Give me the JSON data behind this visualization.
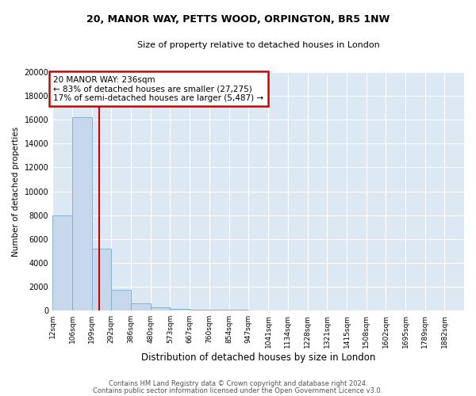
{
  "title1": "20, MANOR WAY, PETTS WOOD, ORPINGTON, BR5 1NW",
  "title2": "Size of property relative to detached houses in London",
  "xlabel": "Distribution of detached houses by size in London",
  "ylabel": "Number of detached properties",
  "footer1": "Contains HM Land Registry data © Crown copyright and database right 2024.",
  "footer2": "Contains public sector information licensed under the Open Government Licence v3.0.",
  "annotation_title": "20 MANOR WAY: 236sqm",
  "annotation_line1": "← 83% of detached houses are smaller (27,275)",
  "annotation_line2": "17% of semi-detached houses are larger (5,487) →",
  "property_size": 236,
  "bar_color": "#c8d8ec",
  "bar_edge_color": "#8ab0cc",
  "vline_color": "#cc0000",
  "annotation_box_color": "#cc0000",
  "background_color": "#dce9f5",
  "grid_color": "#ffffff",
  "xlim_min": 12,
  "xlim_max": 1975,
  "ylim_min": 0,
  "ylim_max": 20000,
  "bin_edges": [
    12,
    106,
    199,
    292,
    386,
    480,
    573,
    667,
    760,
    854,
    947,
    1041,
    1134,
    1228,
    1321,
    1415,
    1508,
    1602,
    1695,
    1789,
    1882
  ],
  "bin_labels": [
    "12sqm",
    "106sqm",
    "199sqm",
    "292sqm",
    "386sqm",
    "480sqm",
    "573sqm",
    "667sqm",
    "760sqm",
    "854sqm",
    "947sqm",
    "1041sqm",
    "1134sqm",
    "1228sqm",
    "1321sqm",
    "1415sqm",
    "1508sqm",
    "1602sqm",
    "1695sqm",
    "1789sqm",
    "1882sqm"
  ],
  "counts": [
    8000,
    16200,
    5200,
    1700,
    600,
    250,
    130,
    80,
    50,
    35,
    25,
    18,
    14,
    10,
    8,
    6,
    5,
    4,
    3,
    3
  ],
  "yticks": [
    0,
    2000,
    4000,
    6000,
    8000,
    10000,
    12000,
    14000,
    16000,
    18000,
    20000
  ]
}
